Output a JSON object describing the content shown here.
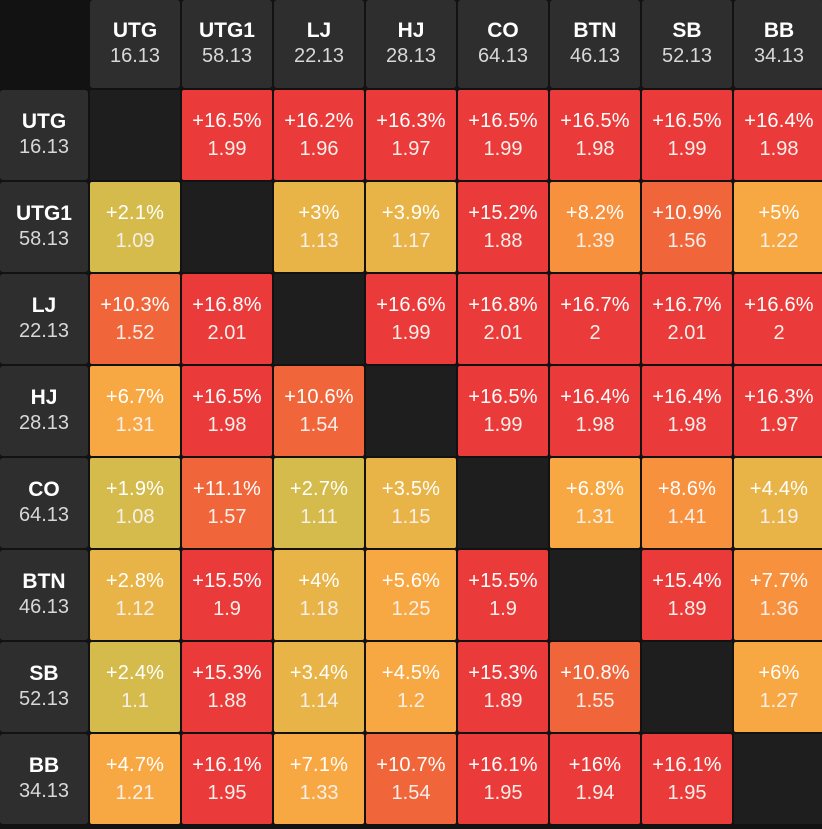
{
  "positions": [
    {
      "name": "UTG",
      "value": "16.13"
    },
    {
      "name": "UTG1",
      "value": "58.13"
    },
    {
      "name": "LJ",
      "value": "22.13"
    },
    {
      "name": "HJ",
      "value": "28.13"
    },
    {
      "name": "CO",
      "value": "64.13"
    },
    {
      "name": "BTN",
      "value": "46.13"
    },
    {
      "name": "SB",
      "value": "52.13"
    },
    {
      "name": "BB",
      "value": "34.13"
    }
  ],
  "colors": {
    "red": "#ea3a3a",
    "orange_red": "#f0663a",
    "orange": "#f8913e",
    "light_orange": "#f8a843",
    "amber": "#e9b447",
    "olive_yellow": "#d4bb4c",
    "diagonal": "#1e1e1e",
    "header_bg": "#2e2e2e",
    "page_bg": "#121212"
  },
  "matrix": [
    [
      null,
      {
        "pct": "+16.5%",
        "num": "1.99"
      },
      {
        "pct": "+16.2%",
        "num": "1.96"
      },
      {
        "pct": "+16.3%",
        "num": "1.97"
      },
      {
        "pct": "+16.5%",
        "num": "1.99"
      },
      {
        "pct": "+16.5%",
        "num": "1.98"
      },
      {
        "pct": "+16.5%",
        "num": "1.99"
      },
      {
        "pct": "+16.4%",
        "num": "1.98"
      }
    ],
    [
      {
        "pct": "+2.1%",
        "num": "1.09"
      },
      null,
      {
        "pct": "+3%",
        "num": "1.13"
      },
      {
        "pct": "+3.9%",
        "num": "1.17"
      },
      {
        "pct": "+15.2%",
        "num": "1.88"
      },
      {
        "pct": "+8.2%",
        "num": "1.39"
      },
      {
        "pct": "+10.9%",
        "num": "1.56"
      },
      {
        "pct": "+5%",
        "num": "1.22"
      }
    ],
    [
      {
        "pct": "+10.3%",
        "num": "1.52"
      },
      {
        "pct": "+16.8%",
        "num": "2.01"
      },
      null,
      {
        "pct": "+16.6%",
        "num": "1.99"
      },
      {
        "pct": "+16.8%",
        "num": "2.01"
      },
      {
        "pct": "+16.7%",
        "num": "2"
      },
      {
        "pct": "+16.7%",
        "num": "2.01"
      },
      {
        "pct": "+16.6%",
        "num": "2"
      }
    ],
    [
      {
        "pct": "+6.7%",
        "num": "1.31"
      },
      {
        "pct": "+16.5%",
        "num": "1.98"
      },
      {
        "pct": "+10.6%",
        "num": "1.54"
      },
      null,
      {
        "pct": "+16.5%",
        "num": "1.99"
      },
      {
        "pct": "+16.4%",
        "num": "1.98"
      },
      {
        "pct": "+16.4%",
        "num": "1.98"
      },
      {
        "pct": "+16.3%",
        "num": "1.97"
      }
    ],
    [
      {
        "pct": "+1.9%",
        "num": "1.08"
      },
      {
        "pct": "+11.1%",
        "num": "1.57"
      },
      {
        "pct": "+2.7%",
        "num": "1.11"
      },
      {
        "pct": "+3.5%",
        "num": "1.15"
      },
      null,
      {
        "pct": "+6.8%",
        "num": "1.31"
      },
      {
        "pct": "+8.6%",
        "num": "1.41"
      },
      {
        "pct": "+4.4%",
        "num": "1.19"
      }
    ],
    [
      {
        "pct": "+2.8%",
        "num": "1.12"
      },
      {
        "pct": "+15.5%",
        "num": "1.9"
      },
      {
        "pct": "+4%",
        "num": "1.18"
      },
      {
        "pct": "+5.6%",
        "num": "1.25"
      },
      {
        "pct": "+15.5%",
        "num": "1.9"
      },
      null,
      {
        "pct": "+15.4%",
        "num": "1.89"
      },
      {
        "pct": "+7.7%",
        "num": "1.36"
      }
    ],
    [
      {
        "pct": "+2.4%",
        "num": "1.1"
      },
      {
        "pct": "+15.3%",
        "num": "1.88"
      },
      {
        "pct": "+3.4%",
        "num": "1.14"
      },
      {
        "pct": "+4.5%",
        "num": "1.2"
      },
      {
        "pct": "+15.3%",
        "num": "1.89"
      },
      {
        "pct": "+10.8%",
        "num": "1.55"
      },
      null,
      {
        "pct": "+6%",
        "num": "1.27"
      }
    ],
    [
      {
        "pct": "+4.7%",
        "num": "1.21"
      },
      {
        "pct": "+16.1%",
        "num": "1.95"
      },
      {
        "pct": "+7.1%",
        "num": "1.33"
      },
      {
        "pct": "+10.7%",
        "num": "1.54"
      },
      {
        "pct": "+16.1%",
        "num": "1.95"
      },
      {
        "pct": "+16%",
        "num": "1.94"
      },
      {
        "pct": "+16.1%",
        "num": "1.95"
      },
      null
    ]
  ]
}
